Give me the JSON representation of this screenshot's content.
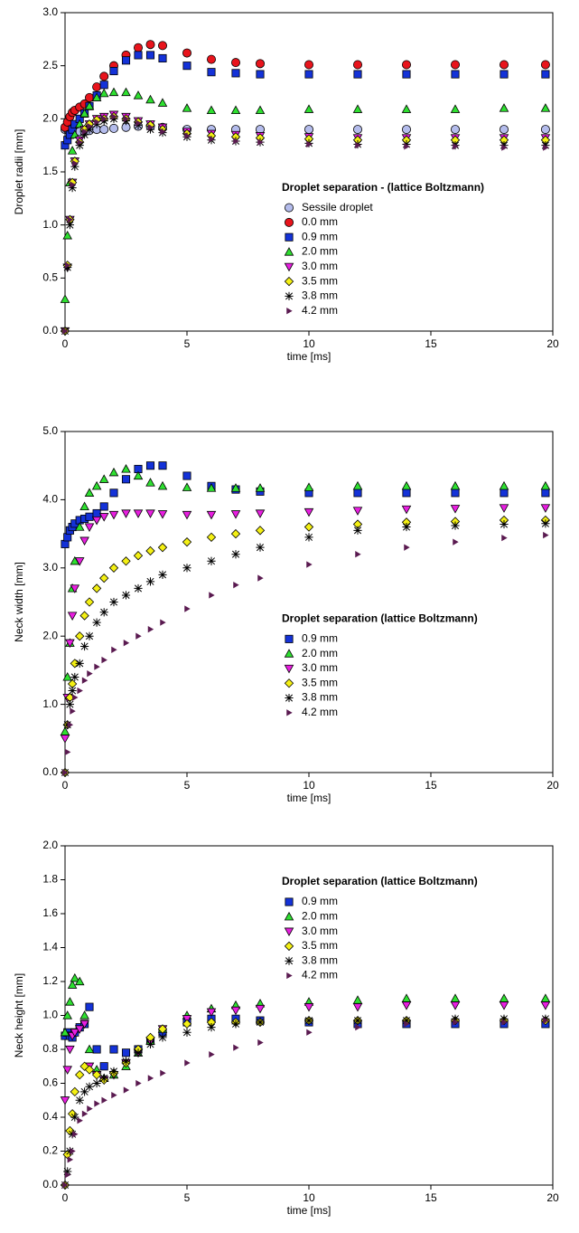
{
  "chart_data": [
    {
      "type": "scatter",
      "y_label": "Droplet radii [mm]",
      "x_label": "time [ms]",
      "legend_title": "Droplet separation - (lattice Boltzmann)",
      "legend": "center right",
      "xlim": [
        0,
        20
      ],
      "xticks": [
        0,
        5,
        10,
        15,
        20
      ],
      "ylim": [
        0,
        3
      ],
      "yticks": [
        {
          "value": 0,
          "label": "0.0"
        },
        0.5,
        {
          "value": 1,
          "label": "1.0"
        },
        1.5,
        {
          "value": 2,
          "label": "2.0"
        },
        2.5,
        {
          "value": 3,
          "label": "3.0"
        }
      ],
      "x": [
        0,
        0.1,
        0.2,
        0.3,
        0.4,
        0.6,
        0.8,
        1,
        1.3,
        1.6,
        2,
        2.5,
        3,
        3.5,
        4,
        5,
        6,
        7,
        8,
        10,
        12,
        14,
        16,
        18,
        19.7
      ],
      "series": [
        {
          "name": "Sessile droplet",
          "color": "#b4bcec",
          "marker": "circle",
          "values": [
            1.9,
            1.9,
            1.88,
            1.88,
            1.88,
            1.88,
            1.88,
            1.89,
            1.9,
            1.9,
            1.91,
            1.92,
            1.93,
            1.93,
            1.92,
            1.9,
            1.9,
            1.9,
            1.9,
            1.9,
            1.9,
            1.9,
            1.9,
            1.9,
            1.9
          ]
        },
        {
          "name": "0.0 mm",
          "color": "#e8141c",
          "marker": "circle",
          "values": [
            1.92,
            1.97,
            2.02,
            2.06,
            2.08,
            2.11,
            2.14,
            2.2,
            2.3,
            2.4,
            2.5,
            2.6,
            2.67,
            2.7,
            2.69,
            2.62,
            2.56,
            2.53,
            2.52,
            2.51,
            2.51,
            2.51,
            2.51,
            2.51,
            2.51
          ]
        },
        {
          "name": "0.9 mm",
          "color": "#1432d8",
          "marker": "square",
          "values": [
            1.75,
            1.8,
            1.85,
            1.9,
            1.95,
            2.0,
            2.05,
            2.12,
            2.22,
            2.32,
            2.45,
            2.55,
            2.6,
            2.6,
            2.57,
            2.5,
            2.44,
            2.43,
            2.42,
            2.42,
            2.42,
            2.42,
            2.42,
            2.42,
            2.42
          ]
        },
        {
          "name": "2.0 mm",
          "color": "#2ee030",
          "marker": "triangle",
          "values": [
            0.3,
            0.9,
            1.4,
            1.7,
            1.85,
            1.95,
            2.05,
            2.12,
            2.2,
            2.24,
            2.25,
            2.25,
            2.22,
            2.18,
            2.15,
            2.1,
            2.08,
            2.08,
            2.08,
            2.09,
            2.09,
            2.09,
            2.09,
            2.1,
            2.1
          ]
        },
        {
          "name": "3.0 mm",
          "color": "#e81ee0",
          "marker": "triangle-down",
          "values": [
            0,
            0.6,
            1.05,
            1.4,
            1.6,
            1.8,
            1.9,
            1.95,
            2.0,
            2.02,
            2.04,
            2.02,
            1.98,
            1.95,
            1.92,
            1.88,
            1.86,
            1.85,
            1.84,
            1.83,
            1.82,
            1.82,
            1.82,
            1.82,
            1.82
          ]
        },
        {
          "name": "3.5 mm",
          "color": "#f4f014",
          "marker": "diamond",
          "values": [
            0,
            0.62,
            1.05,
            1.4,
            1.6,
            1.78,
            1.9,
            1.95,
            1.99,
            2.0,
            2.02,
            2.0,
            1.97,
            1.94,
            1.9,
            1.86,
            1.84,
            1.83,
            1.82,
            1.81,
            1.8,
            1.8,
            1.8,
            1.8,
            1.8
          ]
        },
        {
          "name": "3.8 mm",
          "color": "#000000",
          "marker": "star",
          "values": [
            0,
            0.6,
            1.0,
            1.35,
            1.55,
            1.75,
            1.85,
            1.9,
            1.95,
            1.98,
            2.0,
            1.98,
            1.94,
            1.9,
            1.87,
            1.83,
            1.8,
            1.79,
            1.78,
            1.77,
            1.76,
            1.76,
            1.75,
            1.75,
            1.75
          ]
        },
        {
          "name": "4.2 mm",
          "color": "#5a1a50",
          "marker": "triangle-right",
          "values": [
            0,
            0.62,
            1.05,
            1.38,
            1.58,
            1.78,
            1.88,
            1.93,
            1.97,
            2.0,
            2.02,
            2.0,
            1.96,
            1.92,
            1.88,
            1.84,
            1.81,
            1.79,
            1.78,
            1.76,
            1.75,
            1.74,
            1.74,
            1.73,
            1.73
          ]
        }
      ]
    },
    {
      "type": "scatter",
      "y_label": "Neck width [mm]",
      "x_label": "time [ms]",
      "legend_title": "Droplet separation (lattice Boltzmann)",
      "legend": "center right",
      "xlim": [
        0,
        20
      ],
      "xticks": [
        0,
        5,
        10,
        15,
        20
      ],
      "ylim": [
        0,
        5
      ],
      "yticks": [
        {
          "value": 0,
          "label": "0.0"
        },
        {
          "value": 1,
          "label": "1.0"
        },
        {
          "value": 2,
          "label": "2.0"
        },
        {
          "value": 3,
          "label": "3.0"
        },
        {
          "value": 4,
          "label": "4.0"
        },
        {
          "value": 5,
          "label": "5.0"
        }
      ],
      "x": [
        0,
        0.1,
        0.2,
        0.3,
        0.4,
        0.6,
        0.8,
        1,
        1.3,
        1.6,
        2,
        2.5,
        3,
        3.5,
        4,
        5,
        6,
        7,
        8,
        10,
        12,
        14,
        16,
        18,
        19.7
      ],
      "series": [
        {
          "name": "0.9 mm",
          "color": "#1432d8",
          "marker": "square",
          "values": [
            3.35,
            3.45,
            3.55,
            3.6,
            3.65,
            3.7,
            3.72,
            3.75,
            3.8,
            3.9,
            4.1,
            4.3,
            4.45,
            4.5,
            4.5,
            4.35,
            4.2,
            4.15,
            4.12,
            4.1,
            4.1,
            4.1,
            4.1,
            4.1,
            4.1
          ]
        },
        {
          "name": "2.0 mm",
          "color": "#2ee030",
          "marker": "triangle",
          "values": [
            0.6,
            1.4,
            1.9,
            2.7,
            3.1,
            3.6,
            3.9,
            4.1,
            4.2,
            4.3,
            4.4,
            4.45,
            4.35,
            4.25,
            4.2,
            4.18,
            4.17,
            4.17,
            4.17,
            4.18,
            4.2,
            4.2,
            4.2,
            4.2,
            4.2
          ]
        },
        {
          "name": "3.0 mm",
          "color": "#e81ee0",
          "marker": "triangle-down",
          "values": [
            0.5,
            1.1,
            1.9,
            2.3,
            2.7,
            3.1,
            3.4,
            3.6,
            3.7,
            3.75,
            3.78,
            3.8,
            3.8,
            3.8,
            3.79,
            3.78,
            3.78,
            3.79,
            3.8,
            3.82,
            3.84,
            3.86,
            3.87,
            3.88,
            3.88
          ]
        },
        {
          "name": "3.5 mm",
          "color": "#f4f014",
          "marker": "diamond",
          "values": [
            0,
            0.7,
            1.1,
            1.3,
            1.6,
            2.0,
            2.3,
            2.5,
            2.7,
            2.85,
            3.0,
            3.1,
            3.18,
            3.25,
            3.3,
            3.38,
            3.45,
            3.5,
            3.55,
            3.6,
            3.64,
            3.67,
            3.68,
            3.7,
            3.7
          ]
        },
        {
          "name": "3.8 mm",
          "color": "#000000",
          "marker": "star",
          "values": [
            0,
            0.7,
            1.0,
            1.2,
            1.4,
            1.6,
            1.85,
            2.0,
            2.2,
            2.35,
            2.5,
            2.6,
            2.7,
            2.8,
            2.9,
            3.0,
            3.1,
            3.2,
            3.3,
            3.45,
            3.55,
            3.6,
            3.62,
            3.64,
            3.65
          ]
        },
        {
          "name": "4.2 mm",
          "color": "#5a1a50",
          "marker": "triangle-right",
          "values": [
            0,
            0.3,
            0.7,
            0.9,
            1.1,
            1.2,
            1.35,
            1.45,
            1.55,
            1.65,
            1.8,
            1.9,
            2.0,
            2.1,
            2.2,
            2.4,
            2.6,
            2.75,
            2.85,
            3.05,
            3.2,
            3.3,
            3.38,
            3.44,
            3.48
          ]
        }
      ]
    },
    {
      "type": "scatter",
      "y_label": "Neck height [mm]",
      "x_label": "time [ms]",
      "legend_title": "Droplet separation (lattice Boltzmann)",
      "legend": "upper right",
      "xlim": [
        0,
        20
      ],
      "xticks": [
        0,
        5,
        10,
        15,
        20
      ],
      "ylim": [
        0,
        2
      ],
      "yticks": [
        {
          "value": 0,
          "label": "0.0"
        },
        0.2,
        0.4,
        0.6,
        0.8,
        {
          "value": 1,
          "label": "1.0"
        },
        1.2,
        1.4,
        1.6,
        1.8,
        {
          "value": 2,
          "label": "2.0"
        }
      ],
      "x": [
        0,
        0.1,
        0.2,
        0.3,
        0.4,
        0.6,
        0.8,
        1,
        1.3,
        1.6,
        2,
        2.5,
        3,
        3.5,
        4,
        5,
        6,
        7,
        8,
        10,
        12,
        14,
        16,
        18,
        19.7
      ],
      "series": [
        {
          "name": "0.9 mm",
          "color": "#1432d8",
          "marker": "square",
          "values": [
            0.88,
            0.9,
            0.88,
            0.87,
            0.9,
            0.93,
            0.95,
            1.05,
            0.8,
            0.7,
            0.8,
            0.78,
            0.8,
            0.85,
            0.9,
            0.96,
            0.98,
            0.98,
            0.97,
            0.96,
            0.95,
            0.95,
            0.95,
            0.95,
            0.95
          ]
        },
        {
          "name": "2.0 mm",
          "color": "#2ee030",
          "marker": "triangle",
          "values": [
            0.9,
            1.0,
            1.08,
            1.18,
            1.22,
            1.2,
            1.0,
            0.8,
            0.68,
            0.63,
            0.65,
            0.7,
            0.78,
            0.85,
            0.92,
            1.0,
            1.04,
            1.06,
            1.07,
            1.08,
            1.09,
            1.1,
            1.1,
            1.1,
            1.1
          ]
        },
        {
          "name": "3.0 mm",
          "color": "#e81ee0",
          "marker": "triangle-down",
          "values": [
            0.5,
            0.68,
            0.8,
            0.88,
            0.9,
            0.92,
            0.95,
            0.7,
            0.65,
            0.62,
            0.65,
            0.72,
            0.78,
            0.85,
            0.92,
            0.98,
            1.02,
            1.03,
            1.04,
            1.05,
            1.05,
            1.06,
            1.06,
            1.06,
            1.06
          ]
        },
        {
          "name": "3.5 mm",
          "color": "#f4f014",
          "marker": "diamond",
          "values": [
            0,
            0.18,
            0.32,
            0.42,
            0.55,
            0.65,
            0.7,
            0.68,
            0.65,
            0.62,
            0.66,
            0.72,
            0.8,
            0.87,
            0.92,
            0.95,
            0.96,
            0.96,
            0.96,
            0.97,
            0.97,
            0.97,
            0.97,
            0.97,
            0.97
          ]
        },
        {
          "name": "3.8 mm",
          "color": "#000000",
          "marker": "star",
          "values": [
            0,
            0.08,
            0.2,
            0.3,
            0.4,
            0.5,
            0.55,
            0.58,
            0.6,
            0.63,
            0.67,
            0.73,
            0.78,
            0.83,
            0.87,
            0.9,
            0.93,
            0.95,
            0.96,
            0.97,
            0.97,
            0.97,
            0.98,
            0.98,
            0.98
          ]
        },
        {
          "name": "4.2 mm",
          "color": "#5a1a50",
          "marker": "triangle-right",
          "values": [
            0,
            0.06,
            0.15,
            0.2,
            0.3,
            0.38,
            0.42,
            0.45,
            0.48,
            0.5,
            0.53,
            0.56,
            0.6,
            0.63,
            0.66,
            0.72,
            0.77,
            0.81,
            0.84,
            0.9,
            0.93,
            0.95,
            0.96,
            0.96,
            0.97
          ]
        }
      ]
    }
  ]
}
